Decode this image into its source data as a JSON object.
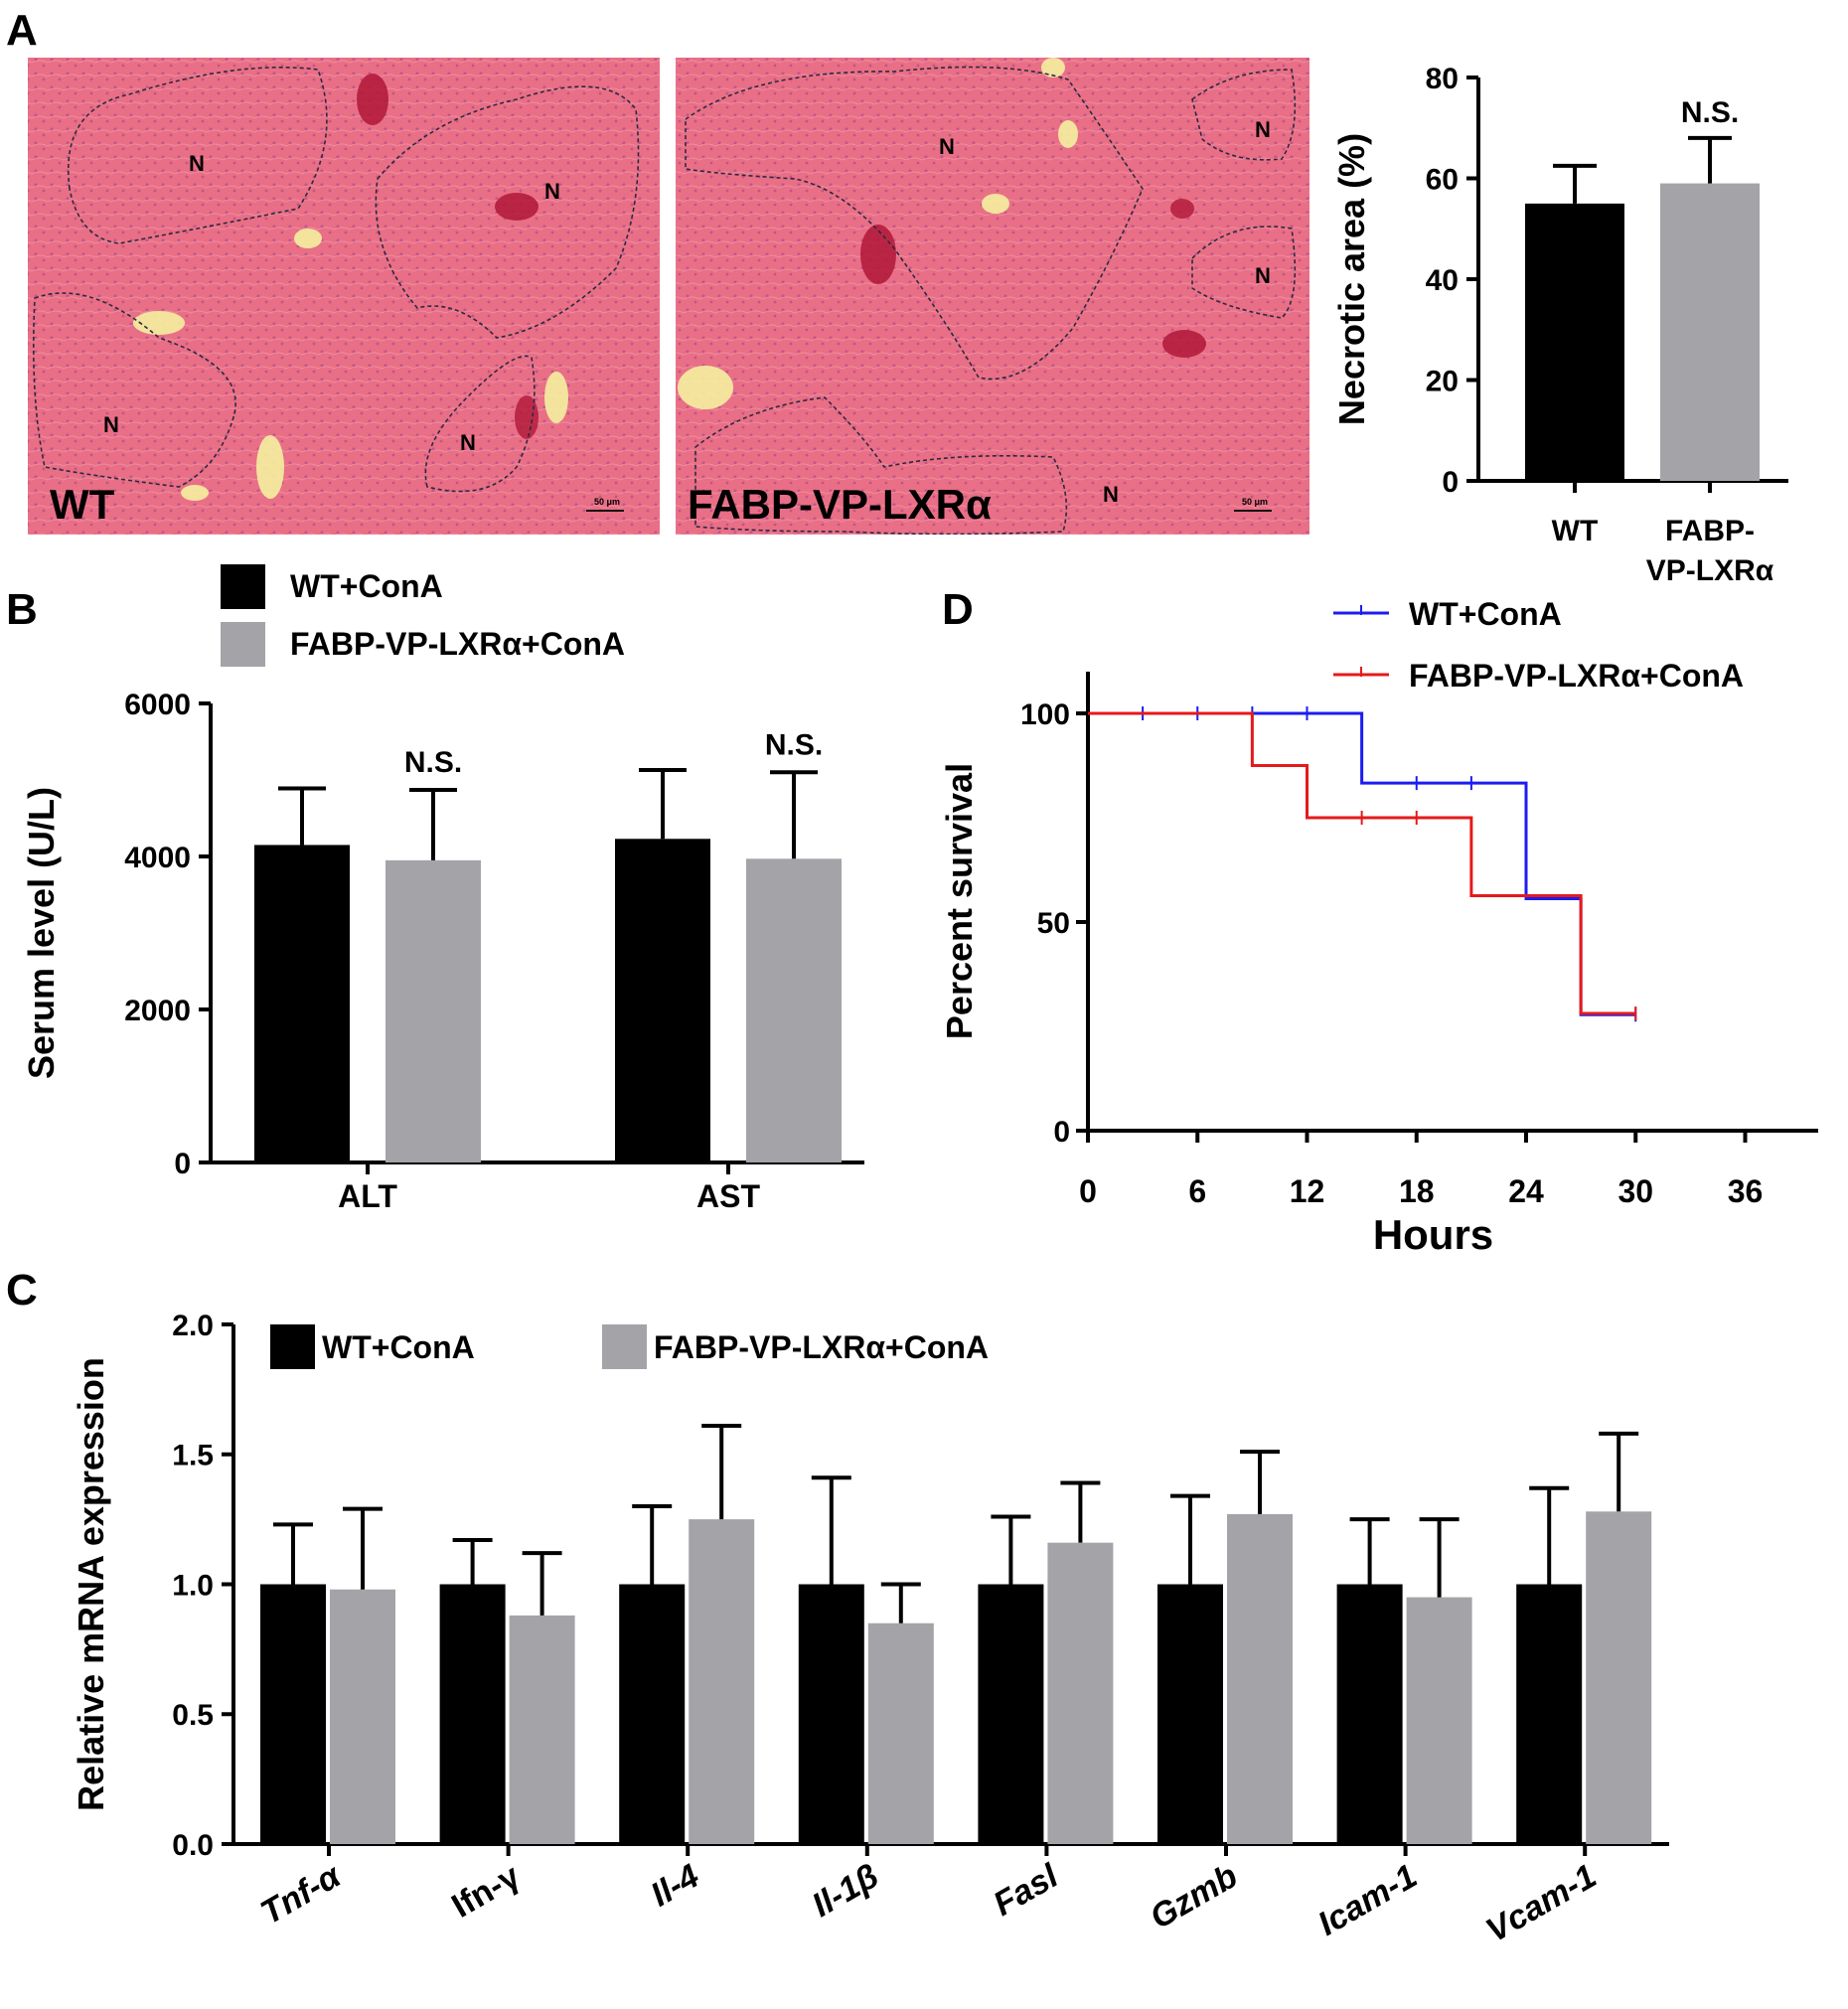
{
  "panel_letters": {
    "a": "A",
    "b": "B",
    "c": "C",
    "d": "D"
  },
  "colors": {
    "wt_bar": "#000000",
    "lxr_bar": "#a4a4a8",
    "wt_line": "#1c1cf0",
    "lxr_line": "#e41a1c",
    "tissue": "#e86a82"
  },
  "micrographs": [
    {
      "group_label": "WT",
      "scale_bar": "50 μm",
      "region_labels": [
        "N",
        "N",
        "N",
        "N"
      ]
    },
    {
      "group_label": "FABP-VP-LXRα",
      "scale_bar": "50 μm",
      "region_labels": [
        "N",
        "N",
        "N",
        "N"
      ]
    }
  ],
  "chart_data": [
    {
      "panel": "A",
      "type": "bar",
      "ylabel": "Necrotic area (%)",
      "ylim": [
        0,
        80
      ],
      "yticks": [
        0,
        20,
        40,
        60,
        80
      ],
      "categories": [
        "WT",
        "FABP-VP-LXRα"
      ],
      "category_lines": [
        [
          "WT"
        ],
        [
          "FABP-",
          "VP-LXRα"
        ]
      ],
      "values": [
        55,
        59
      ],
      "errors": [
        7.5,
        9
      ],
      "annotations": [
        {
          "category": 1,
          "text": "N.S."
        }
      ]
    },
    {
      "panel": "B",
      "type": "bar",
      "ylabel": "Serum level (U/L)",
      "ylim": [
        0,
        6000
      ],
      "yticks": [
        0,
        2000,
        4000,
        6000
      ],
      "categories": [
        "ALT",
        "AST"
      ],
      "series": [
        {
          "name": "WT+ConA",
          "values": [
            4150,
            4230
          ],
          "errors": [
            740,
            900
          ]
        },
        {
          "name": "FABP-VP-LXRα+ConA",
          "values": [
            3950,
            3970
          ],
          "errors": [
            920,
            1130
          ]
        }
      ],
      "annotations": [
        {
          "category": 0,
          "series": 1,
          "text": "N.S."
        },
        {
          "category": 1,
          "series": 1,
          "text": "N.S."
        }
      ]
    },
    {
      "panel": "C",
      "type": "bar",
      "ylabel": "Relative mRNA expression",
      "ylim": [
        0,
        2.0
      ],
      "yticks": [
        "0.0",
        "0.5",
        "1.0",
        "1.5",
        "2.0"
      ],
      "categories": [
        "Tnf-α",
        "Ifn-γ",
        "Il-4",
        "Il-1β",
        "Fasl",
        "Gzmb",
        "Icam-1",
        "Vcam-1"
      ],
      "italic_categories": [
        true,
        false,
        true,
        true,
        true,
        true,
        true,
        true
      ],
      "series": [
        {
          "name": "WT+ConA",
          "values": [
            1.0,
            1.0,
            1.0,
            1.0,
            1.0,
            1.0,
            1.0,
            1.0
          ],
          "errors": [
            0.23,
            0.17,
            0.3,
            0.41,
            0.26,
            0.34,
            0.25,
            0.37
          ]
        },
        {
          "name": "FABP-VP-LXRα+ConA",
          "values": [
            0.98,
            0.88,
            1.25,
            0.85,
            1.16,
            1.27,
            0.95,
            1.28
          ],
          "errors": [
            0.31,
            0.24,
            0.36,
            0.15,
            0.23,
            0.24,
            0.3,
            0.3
          ]
        }
      ]
    },
    {
      "panel": "D",
      "type": "line",
      "step": true,
      "xlabel": "Hours",
      "ylabel": "Percent survival",
      "xlim": [
        0,
        40
      ],
      "ylim": [
        0,
        110
      ],
      "xticks": [
        0,
        6,
        12,
        18,
        24,
        30,
        36
      ],
      "yticks": [
        0,
        50,
        100
      ],
      "series": [
        {
          "name": "WT+ConA",
          "x": [
            0,
            15,
            15,
            24,
            24,
            27,
            27,
            30
          ],
          "y": [
            100,
            100,
            83.3,
            83.3,
            55.6,
            55.6,
            27.8,
            27.8
          ],
          "censored": [
            [
              3,
              100
            ],
            [
              6,
              100
            ],
            [
              9,
              100
            ],
            [
              12,
              100
            ],
            [
              18,
              83.3
            ],
            [
              21,
              83.3
            ],
            [
              30,
              27.8
            ]
          ]
        },
        {
          "name": "FABP-VP-LXRα+ConA",
          "x": [
            0,
            9,
            9,
            12,
            12,
            21,
            21,
            27,
            27,
            30
          ],
          "y": [
            100,
            100,
            87.5,
            87.5,
            75,
            75,
            56.3,
            56.3,
            28.1,
            28.1
          ],
          "censored": [
            [
              15,
              75
            ],
            [
              18,
              75
            ],
            [
              30,
              28.1
            ]
          ]
        }
      ]
    }
  ]
}
